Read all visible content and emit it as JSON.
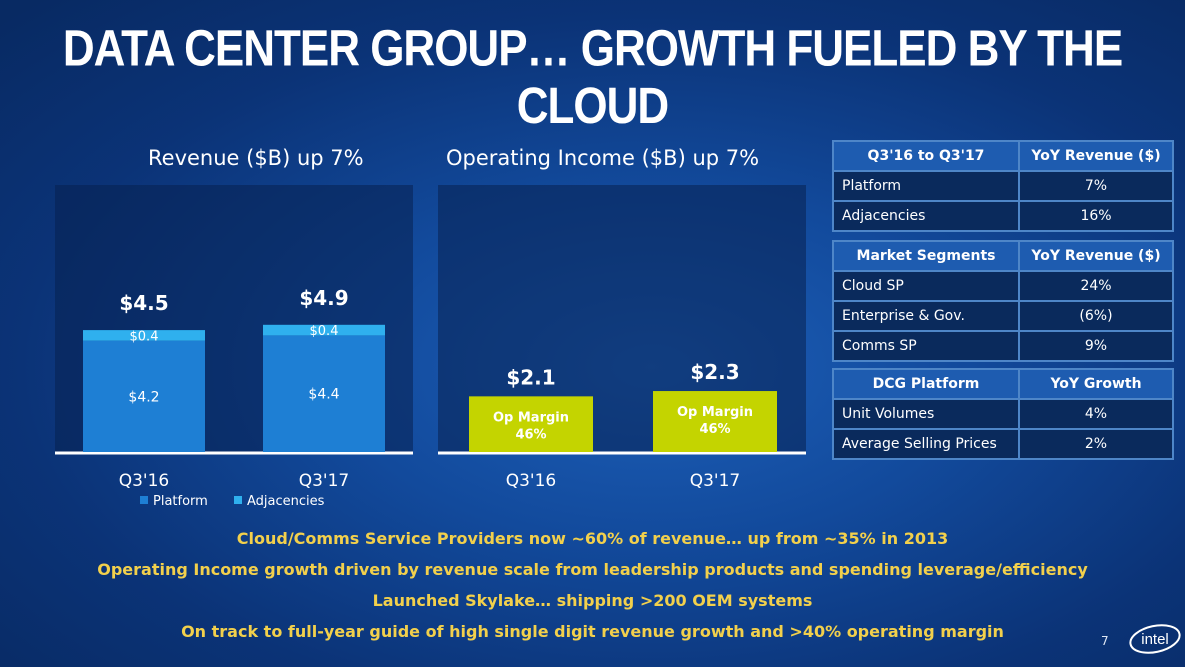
{
  "title": "DATA CENTER GROUP… GROWTH FUELED BY THE CLOUD",
  "colors": {
    "platform": "#1e7fd4",
    "adjacencies": "#2fb0ee",
    "op_income": "#c4d400",
    "bullet_text": "#f2d04c"
  },
  "chart_data": [
    {
      "type": "bar",
      "stacked": true,
      "title": "Revenue ($B) up 7%",
      "categories": [
        "Q3'16",
        "Q3'17"
      ],
      "series": [
        {
          "name": "Platform",
          "values": [
            4.2,
            4.4
          ],
          "labels": [
            "$4.2",
            "$4.4"
          ]
        },
        {
          "name": "Adjacencies",
          "values": [
            0.4,
            0.4
          ],
          "labels": [
            "$0.4",
            "$0.4"
          ]
        }
      ],
      "totals": [
        "$4.5",
        "$4.9"
      ],
      "legend": "bottom-left"
    },
    {
      "type": "bar",
      "title": "Operating Income ($B) up 7%",
      "categories": [
        "Q3'16",
        "Q3'17"
      ],
      "values": [
        2.1,
        2.3
      ],
      "value_labels": [
        "$2.1",
        "$2.3"
      ],
      "bar_labels": [
        "Op Margin\n46%",
        "Op Margin\n46%"
      ]
    }
  ],
  "tables": [
    {
      "header": [
        "Q3'16 to Q3'17",
        "YoY Revenue ($)"
      ],
      "rows": [
        [
          "Platform",
          "7%"
        ],
        [
          "Adjacencies",
          "16%"
        ]
      ]
    },
    {
      "header": [
        "Market Segments",
        "YoY Revenue ($)"
      ],
      "rows": [
        [
          "Cloud SP",
          "24%"
        ],
        [
          "Enterprise & Gov.",
          "(6%)"
        ],
        [
          "Comms SP",
          "9%"
        ]
      ]
    },
    {
      "header": [
        "DCG Platform",
        "YoY Growth"
      ],
      "rows": [
        [
          "Unit Volumes",
          "4%"
        ],
        [
          "Average Selling Prices",
          "2%"
        ]
      ]
    }
  ],
  "bullets": [
    "Cloud/Comms Service Providers now ~60% of revenue… up from ~35% in 2013",
    "Operating Income growth driven by revenue scale from leadership products and spending leverage/efficiency",
    "Launched Skylake… shipping >200 OEM systems",
    "On track to full-year guide of high single digit revenue growth and >40% operating margin"
  ],
  "page_number": "7",
  "logo_text": "intel"
}
